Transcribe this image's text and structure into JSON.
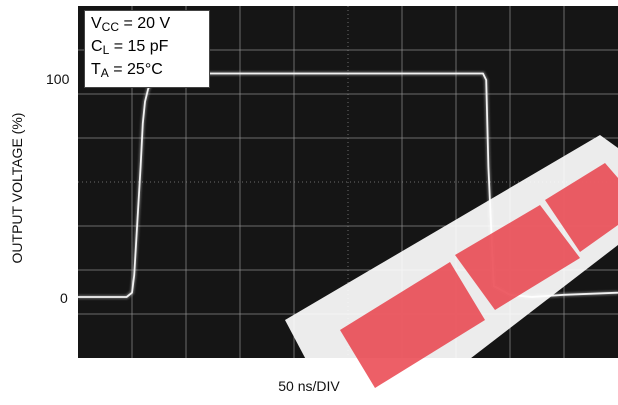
{
  "chart_data": {
    "type": "line",
    "title": "",
    "xlabel": "50 ns/DIV",
    "ylabel": "OUTPUT VOLTAGE (%)",
    "y_ticks": [
      "0",
      "100"
    ],
    "grid": true,
    "x_divisions": 10,
    "x_units_per_div": 50,
    "series": [
      {
        "x": [
          0,
          45,
          50,
          52,
          58,
          60,
          62,
          65,
          70,
          80,
          100,
          150,
          200,
          250,
          300,
          350,
          375,
          378,
          380,
          385,
          400,
          420,
          450,
          500
        ],
        "values": [
          0,
          0,
          2,
          10,
          60,
          80,
          90,
          96,
          100,
          103,
          103,
          103,
          103,
          103,
          103,
          103,
          103,
          100,
          60,
          5,
          1,
          0,
          1,
          2
        ]
      }
    ],
    "annotations": {
      "vcc_main": "V",
      "vcc_sub": "CC",
      "vcc_rest": " = 20 V",
      "cl_main": "C",
      "cl_sub": "L",
      "cl_rest": " = 15 pF",
      "ta_main": "T",
      "ta_sub": "A",
      "ta_rest": " = 25°C"
    },
    "colors": {
      "screen": "#151515",
      "grid": "#8a8a8a",
      "trace": "#f2f2f2",
      "watermark": "#e8323c"
    }
  }
}
